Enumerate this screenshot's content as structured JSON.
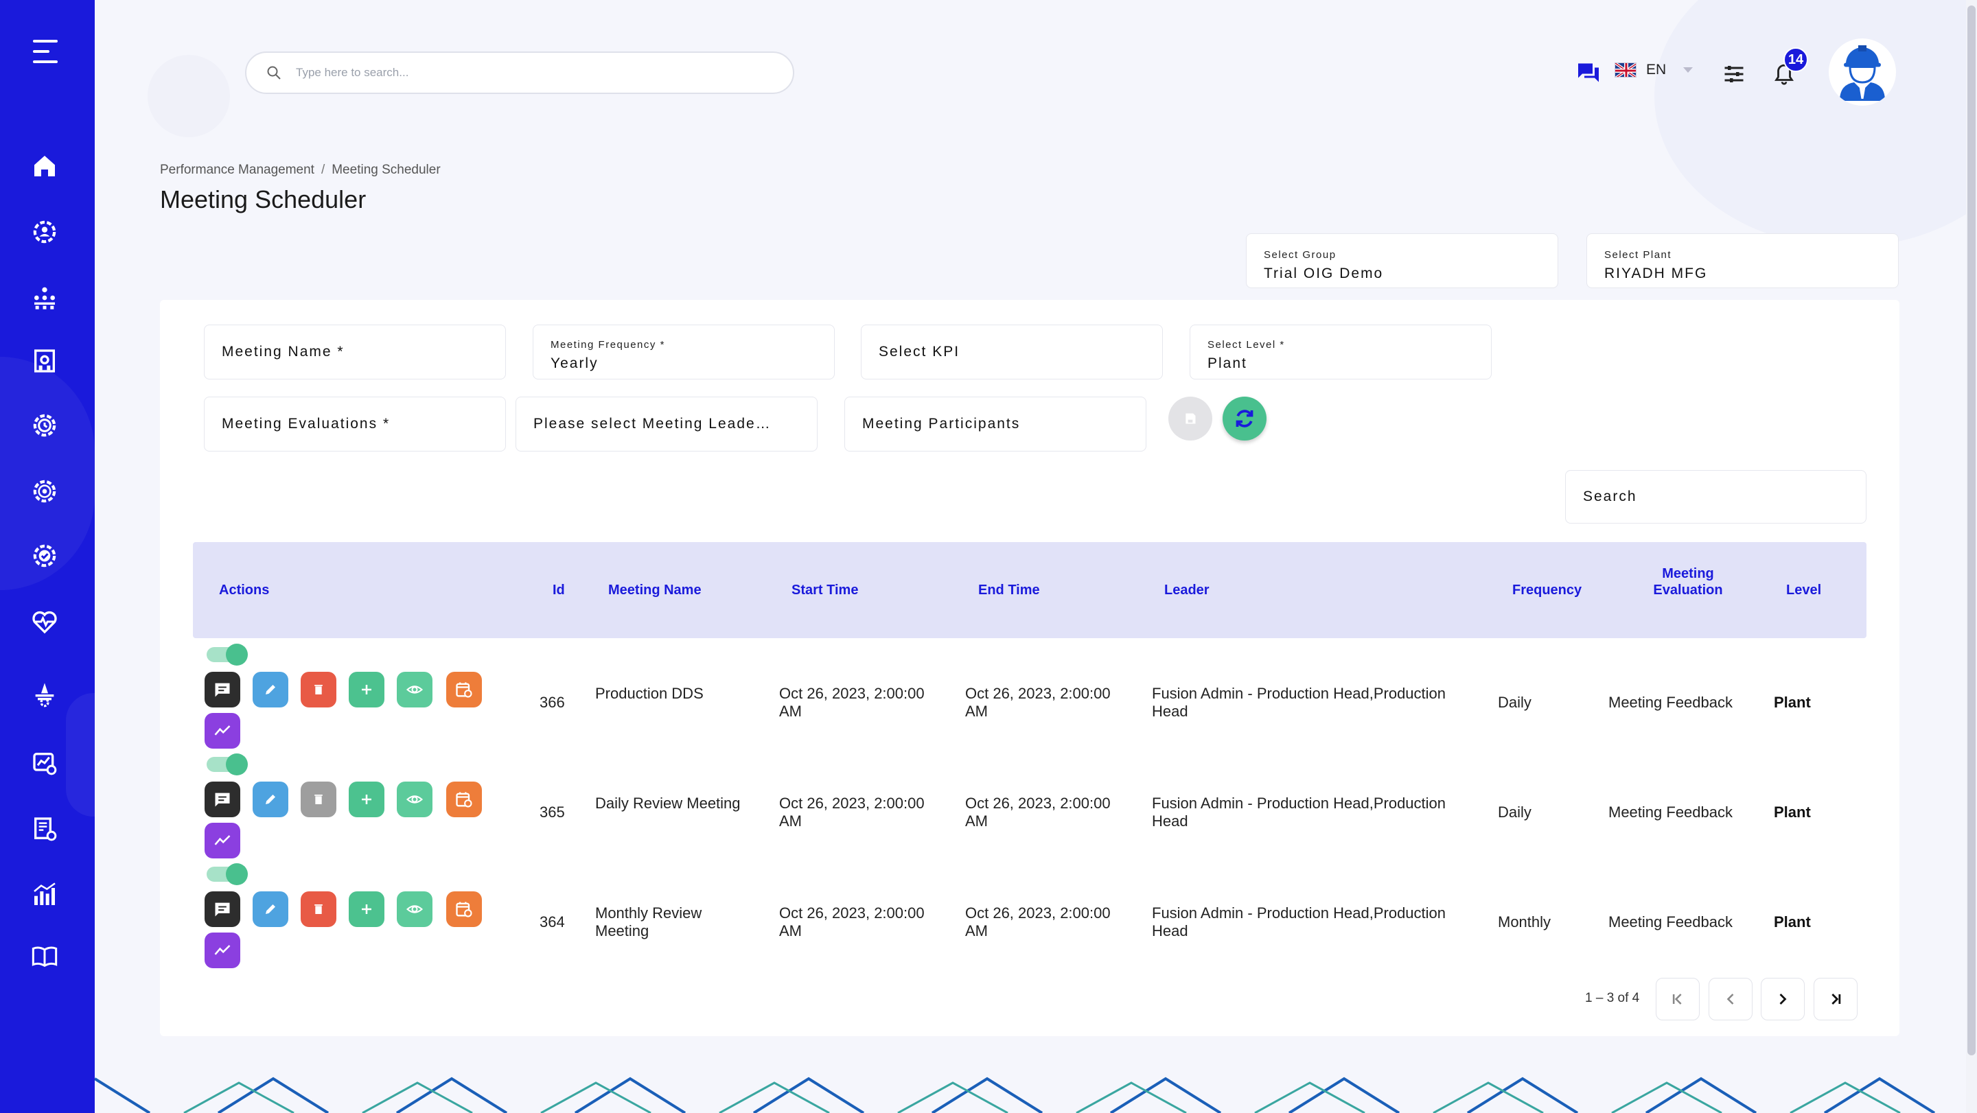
{
  "header": {
    "search_placeholder": "Type here to search...",
    "language": "EN",
    "notification_count": "14"
  },
  "breadcrumb": {
    "parent": "Performance Management",
    "separator": "/",
    "current": "Meeting Scheduler"
  },
  "page_title": "Meeting Scheduler",
  "selectors": {
    "group_label": "Select Group",
    "group_value": "Trial OIG Demo",
    "plant_label": "Select Plant",
    "plant_value": "RIYADH MFG"
  },
  "form": {
    "meeting_name": "Meeting Name *",
    "frequency_label": "Meeting Frequency *",
    "frequency_value": "Yearly",
    "kpi": "Select KPI",
    "level_label": "Select Level *",
    "level_value": "Plant",
    "evaluations": "Meeting Evaluations *",
    "leader": "Please select Meeting Leade…",
    "participants": "Meeting Participants"
  },
  "table_search": "Search",
  "columns": {
    "actions": "Actions",
    "id": "Id",
    "name": "Meeting Name",
    "start": "Start Time",
    "end": "End Time",
    "leader": "Leader",
    "frequency": "Frequency",
    "evaluation_line1": "Meeting",
    "evaluation_line2": "Evaluation",
    "level": "Level"
  },
  "rows": [
    {
      "id": "366",
      "name_line1": "Production DDS",
      "name_line2": "",
      "start_line1": "Oct 26, 2023, 2:00:00",
      "start_line2": "AM",
      "end_line1": "Oct 26, 2023, 2:00:00",
      "end_line2": "AM",
      "leader_line1": "Fusion Admin - Production Head,Production",
      "leader_line2": "Head",
      "frequency": "Daily",
      "evaluation": "Meeting Feedback",
      "level": "Plant",
      "delete_enabled": true
    },
    {
      "id": "365",
      "name_line1": "Daily Review Meeting",
      "name_line2": "",
      "start_line1": "Oct 26, 2023, 2:00:00",
      "start_line2": "AM",
      "end_line1": "Oct 26, 2023, 2:00:00",
      "end_line2": "AM",
      "leader_line1": "Fusion Admin - Production Head,Production",
      "leader_line2": "Head",
      "frequency": "Daily",
      "evaluation": "Meeting Feedback",
      "level": "Plant",
      "delete_enabled": false
    },
    {
      "id": "364",
      "name_line1": "Monthly Review",
      "name_line2": "Meeting",
      "start_line1": "Oct 26, 2023, 2:00:00",
      "start_line2": "AM",
      "end_line1": "Oct 26, 2023, 2:00:00",
      "end_line2": "AM",
      "leader_line1": "Fusion Admin - Production Head,Production",
      "leader_line2": "Head",
      "frequency": "Monthly",
      "evaluation": "Meeting Feedback",
      "level": "Plant",
      "delete_enabled": true
    }
  ],
  "pagination": {
    "range": "1 – 3 of 4"
  },
  "colors": {
    "sidebar": "#1a1adb",
    "header_row": "#e1e2f8",
    "accent": "#1a1adb",
    "chat_btn": "#2d2d2d",
    "edit_btn": "#4ea3e0",
    "delete_btn": "#e85a45",
    "delete_disabled": "#9e9e9e",
    "add_btn": "#4cc28f",
    "view_btn": "#5ccb9b",
    "calendar_btn": "#ee7d3a",
    "trend_btn": "#8b3fe0"
  },
  "icons": {
    "sidebar": [
      "menu-icon",
      "home-icon",
      "gear-person-icon",
      "people-network-icon",
      "factory-icon",
      "clock-gear-icon",
      "target-icon",
      "check-gear-icon",
      "heart-pulse-icon",
      "tower-icon",
      "chart-gear-icon",
      "report-icon",
      "bar-chart-icon",
      "book-icon"
    ],
    "actions": [
      "comment-icon",
      "edit-icon",
      "delete-icon",
      "add-icon",
      "view-icon",
      "calendar-refresh-icon",
      "trend-icon"
    ]
  }
}
